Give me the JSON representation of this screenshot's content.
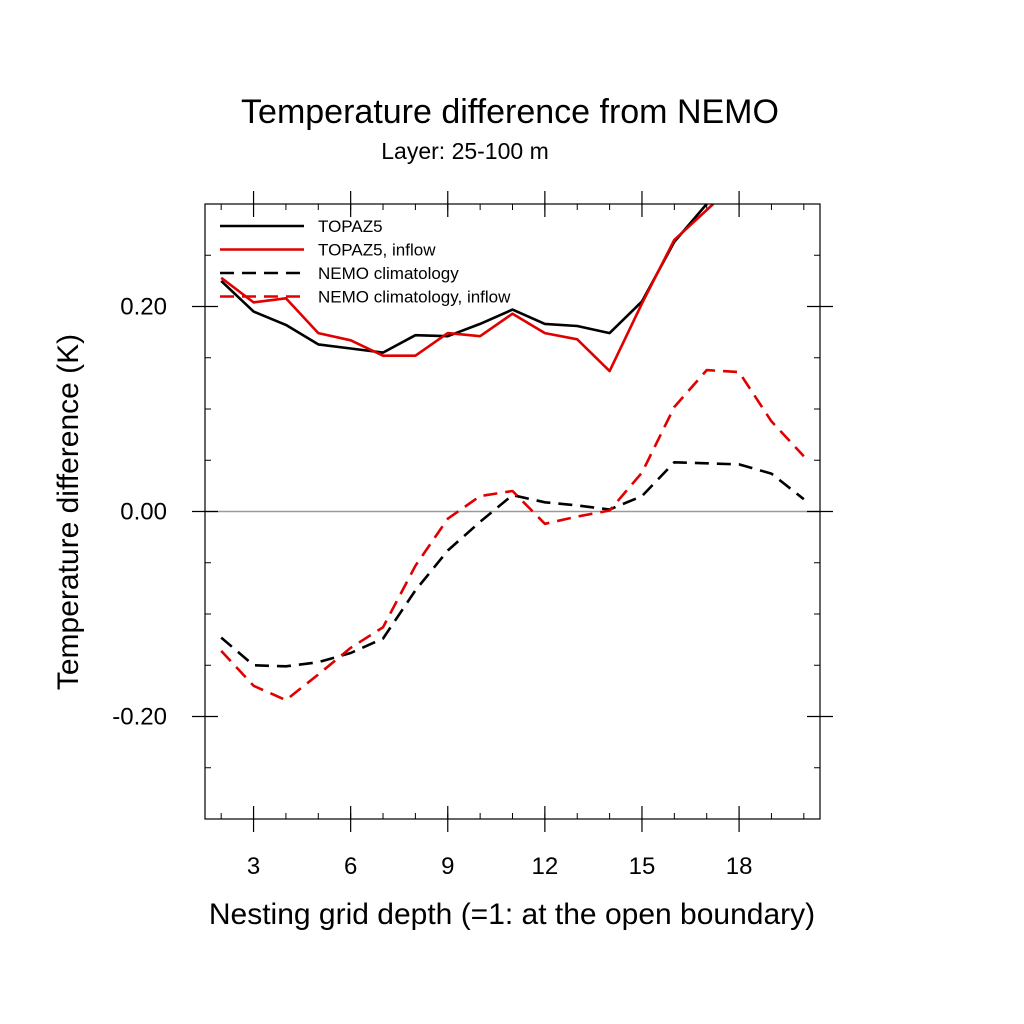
{
  "chart_data": {
    "type": "line",
    "title": "Temperature difference from NEMO",
    "subtitle": "Layer: 25-100 m",
    "xlabel": "Nesting grid depth (=1: at the open boundary)",
    "ylabel": "Temperature difference (K)",
    "xlim": [
      1.5,
      20.5
    ],
    "ylim": [
      -0.3,
      0.3
    ],
    "xticks": [
      3,
      6,
      9,
      12,
      15,
      18
    ],
    "xtick_labels": [
      "3",
      "6",
      "9",
      "12",
      "15",
      "18"
    ],
    "yticks": [
      -0.2,
      0.0,
      0.2
    ],
    "ytick_labels": [
      "-0.20",
      "0.00",
      "0.20"
    ],
    "zero_line": true,
    "grid": false,
    "legend_position": "top-left",
    "series": [
      {
        "name": "TOPAZ5",
        "color": "#000000",
        "dash": "solid",
        "x": [
          2,
          3,
          4,
          5,
          6,
          7,
          8,
          9,
          10,
          11,
          12,
          13,
          14,
          15,
          16,
          17
        ],
        "values": [
          0.225,
          0.195,
          0.182,
          0.163,
          0.159,
          0.155,
          0.172,
          0.171,
          0.183,
          0.197,
          0.183,
          0.181,
          0.174,
          0.205,
          0.263,
          0.3
        ]
      },
      {
        "name": "TOPAZ5, inflow",
        "color": "#e00000",
        "dash": "solid",
        "x": [
          2,
          3,
          4,
          5,
          6,
          7,
          8,
          9,
          10,
          11,
          12,
          13,
          14,
          15,
          16,
          17.2
        ],
        "values": [
          0.228,
          0.204,
          0.208,
          0.174,
          0.167,
          0.152,
          0.152,
          0.174,
          0.171,
          0.193,
          0.174,
          0.168,
          0.137,
          0.203,
          0.265,
          0.3
        ]
      },
      {
        "name": "NEMO climatology",
        "color": "#000000",
        "dash": "dashed",
        "x": [
          2,
          3,
          4,
          5,
          6,
          7,
          8,
          9,
          10,
          11,
          12,
          13,
          14,
          15,
          16,
          17,
          18,
          19,
          20
        ],
        "values": [
          -0.123,
          -0.15,
          -0.151,
          -0.147,
          -0.138,
          -0.124,
          -0.077,
          -0.038,
          -0.01,
          0.016,
          0.009,
          0.006,
          0.002,
          0.015,
          0.048,
          0.047,
          0.046,
          0.037,
          0.012
        ]
      },
      {
        "name": "NEMO climatology, inflow",
        "color": "#e00000",
        "dash": "dashed",
        "x": [
          2,
          3,
          4,
          5,
          6,
          7,
          8,
          9,
          10,
          11,
          12,
          13,
          14,
          15,
          16,
          17,
          18,
          19,
          20
        ],
        "values": [
          -0.136,
          -0.17,
          -0.184,
          -0.159,
          -0.133,
          -0.113,
          -0.053,
          -0.007,
          0.015,
          0.02,
          -0.012,
          -0.005,
          0.001,
          0.038,
          0.102,
          0.138,
          0.136,
          0.088,
          0.054
        ]
      }
    ]
  }
}
